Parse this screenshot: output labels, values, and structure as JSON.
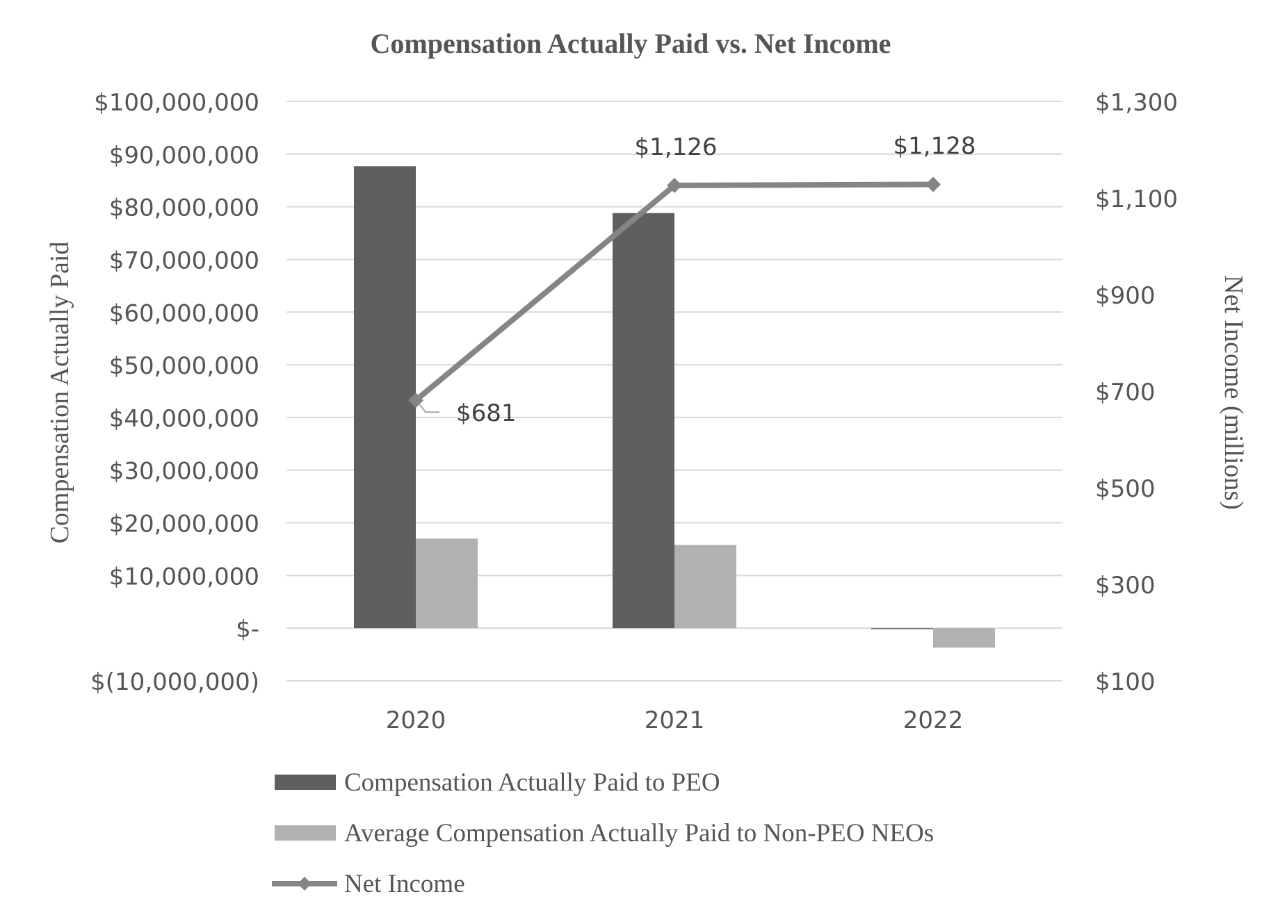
{
  "chart_data": {
    "type": "bar",
    "title": "Compensation Actually Paid vs. Net Income",
    "categories": [
      "2020",
      "2021",
      "2022"
    ],
    "ylabel": "Compensation Actually Paid",
    "y2label": "Net Income (millions)",
    "ylim": [
      -10000000,
      100000000
    ],
    "y2lim": [
      100,
      1300
    ],
    "yticks": [
      "$(10,000,000)",
      "$-",
      "$10,000,000",
      "$20,000,000",
      "$30,000,000",
      "$40,000,000",
      "$50,000,000",
      "$60,000,000",
      "$70,000,000",
      "$80,000,000",
      "$90,000,000",
      "$100,000,000"
    ],
    "y2ticks": [
      "$100",
      "$300",
      "$500",
      "$700",
      "$900",
      "$1,100",
      "$1,300"
    ],
    "grid": true,
    "legend_position": "bottom",
    "series": [
      {
        "name": "Compensation Actually Paid to PEO",
        "type": "bar",
        "axis": "left",
        "color": "#5f5f5f",
        "values": [
          87700000,
          78800000,
          -200000
        ]
      },
      {
        "name": "Average Compensation Actually Paid to Non-PEO NEOs",
        "type": "bar",
        "axis": "left",
        "color": "#b1b1b1",
        "values": [
          17000000,
          15800000,
          -3700000
        ]
      },
      {
        "name": "Net Income",
        "type": "line",
        "axis": "right",
        "color": "#858585",
        "marker": "diamond",
        "values": [
          681,
          1126,
          1128
        ],
        "labels": [
          "$681",
          "$1,126",
          "$1,128"
        ]
      }
    ]
  }
}
